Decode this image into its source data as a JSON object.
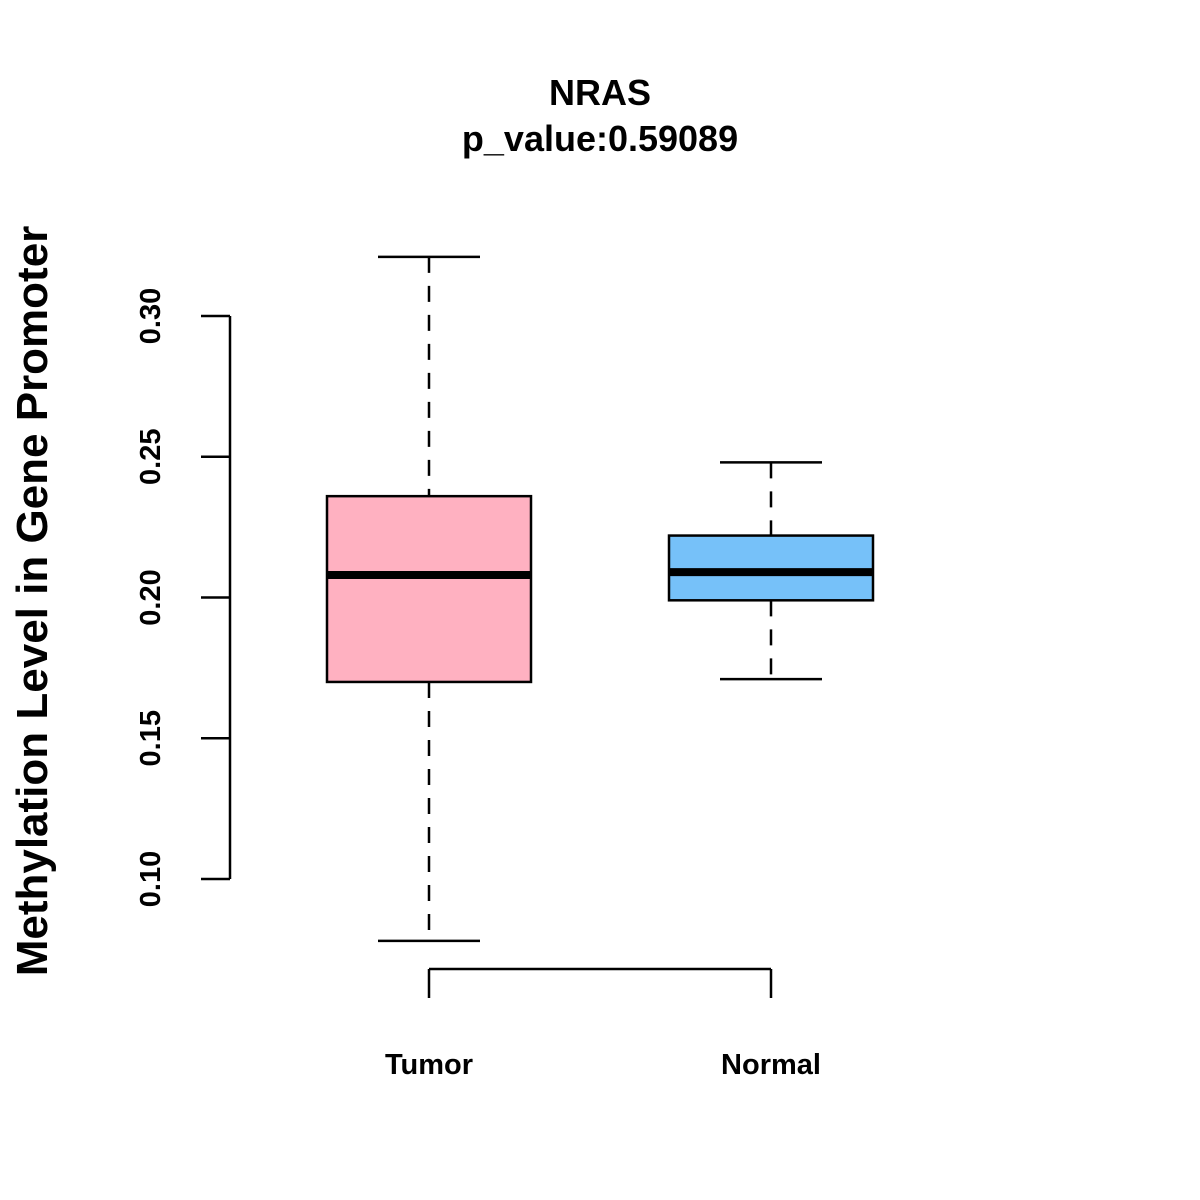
{
  "chart_data": {
    "type": "box",
    "title": "NRAS",
    "subtitle": "p_value:0.59089",
    "xlabel": "",
    "ylabel": "Methylation Level in Gene Promoter",
    "ylim": [
      0.1,
      0.3
    ],
    "yticks": [
      0.1,
      0.15,
      0.2,
      0.25,
      0.3
    ],
    "ytick_labels": [
      "0.10",
      "0.15",
      "0.20",
      "0.25",
      "0.30"
    ],
    "grid": false,
    "groups": [
      {
        "name": "Tumor",
        "color": "#ffb1c1",
        "whisker_low": 0.078,
        "q1": 0.17,
        "median": 0.208,
        "q3": 0.236,
        "whisker_high": 0.321
      },
      {
        "name": "Normal",
        "color": "#76c1f9",
        "whisker_low": 0.171,
        "q1": 0.199,
        "median": 0.209,
        "q3": 0.222,
        "whisker_high": 0.248
      }
    ]
  }
}
